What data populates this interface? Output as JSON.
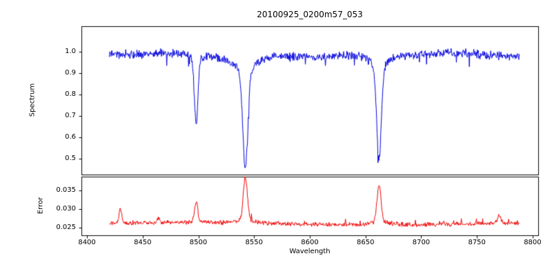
{
  "chart_data": [
    {
      "type": "line",
      "name": "spectrum-panel",
      "title": "20100925_0200m57_053",
      "ylabel": "Spectrum",
      "line_color": "#0000dd",
      "xlim": [
        8395,
        8805
      ],
      "x_range": [
        8420,
        8788
      ],
      "ylim": [
        0.425,
        1.12
      ],
      "yticks": {
        "values": [
          0.5,
          0.6,
          0.7,
          0.8,
          0.9,
          1.0
        ],
        "labels": [
          "0.5",
          "0.6",
          "0.7",
          "0.8",
          "0.9",
          "1.0"
        ]
      },
      "baseline": 0.988,
      "noise_amplitude": 0.022,
      "min_value": 0.455,
      "absorption_lines": [
        {
          "center": 8498.0,
          "depth": 0.31,
          "sigma": 1.6,
          "wing_depth": 0.025,
          "wing_width": 5,
          "min_flux": 0.65
        },
        {
          "center": 8542.1,
          "depth": 0.44,
          "sigma": 2.2,
          "wing_depth": 0.09,
          "wing_width": 9,
          "min_flux": 0.455
        },
        {
          "center": 8662.1,
          "depth": 0.42,
          "sigma": 2.0,
          "wing_depth": 0.08,
          "wing_width": 8,
          "min_flux": 0.475
        }
      ]
    },
    {
      "type": "line",
      "name": "error-panel",
      "ylabel": "Error",
      "xlabel": "Wavelength",
      "line_color": "#ee0000",
      "ylim": [
        0.023,
        0.0388
      ],
      "yticks": {
        "values": [
          0.025,
          0.03,
          0.035
        ],
        "labels": [
          "0.025",
          "0.030",
          "0.035"
        ]
      },
      "xticks": {
        "values": [
          8400,
          8450,
          8500,
          8550,
          8600,
          8650,
          8700,
          8750,
          8800
        ],
        "labels": [
          "8400",
          "8450",
          "8500",
          "8550",
          "8600",
          "8650",
          "8700",
          "8750",
          "8800"
        ]
      },
      "baseline": 0.0261,
      "noise_amplitude": 0.0007,
      "peaks": [
        {
          "center": 8430.0,
          "height": 0.004,
          "sigma": 1.2,
          "wing_height": 0,
          "wing_width": 0
        },
        {
          "center": 8464.0,
          "height": 0.0013,
          "sigma": 1.0,
          "wing_height": 0,
          "wing_width": 0
        },
        {
          "center": 8498.0,
          "height": 0.0052,
          "sigma": 1.4,
          "wing_height": 0.0004,
          "wing_width": 5
        },
        {
          "center": 8542.1,
          "height": 0.0112,
          "sigma": 1.8,
          "wing_height": 0.0012,
          "wing_width": 7
        },
        {
          "center": 8662.1,
          "height": 0.0096,
          "sigma": 1.8,
          "wing_height": 0.001,
          "wing_width": 7
        },
        {
          "center": 8770.0,
          "height": 0.0022,
          "sigma": 1.5,
          "wing_height": 0,
          "wing_width": 0
        }
      ]
    }
  ]
}
